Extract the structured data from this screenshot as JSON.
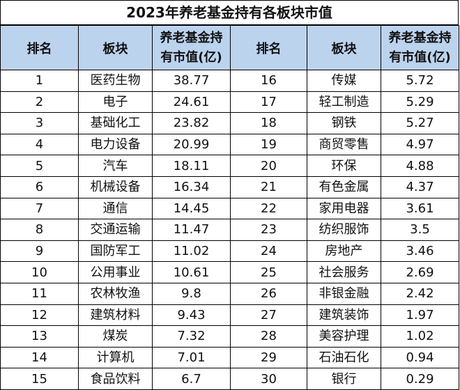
{
  "title": "2023年养老基金持有各板块市值",
  "headers": {
    "rank": "排名",
    "sector": "板块",
    "value_line1": "养老基金持",
    "value_line2": "有市值(亿)"
  },
  "left": [
    {
      "rank": "1",
      "sector": "医药生物",
      "value": "38.77"
    },
    {
      "rank": "2",
      "sector": "电子",
      "value": "24.61"
    },
    {
      "rank": "3",
      "sector": "基础化工",
      "value": "23.82"
    },
    {
      "rank": "4",
      "sector": "电力设备",
      "value": "20.99"
    },
    {
      "rank": "5",
      "sector": "汽车",
      "value": "18.11"
    },
    {
      "rank": "6",
      "sector": "机械设备",
      "value": "16.34"
    },
    {
      "rank": "7",
      "sector": "通信",
      "value": "14.45"
    },
    {
      "rank": "8",
      "sector": "交通运输",
      "value": "11.47"
    },
    {
      "rank": "9",
      "sector": "国防军工",
      "value": "11.02"
    },
    {
      "rank": "10",
      "sector": "公用事业",
      "value": "10.61"
    },
    {
      "rank": "11",
      "sector": "农林牧渔",
      "value": "9.8"
    },
    {
      "rank": "12",
      "sector": "建筑材料",
      "value": "9.43"
    },
    {
      "rank": "13",
      "sector": "煤炭",
      "value": "7.32"
    },
    {
      "rank": "14",
      "sector": "计算机",
      "value": "7.01"
    },
    {
      "rank": "15",
      "sector": "食品饮料",
      "value": "6.7"
    }
  ],
  "right": [
    {
      "rank": "16",
      "sector": "传媒",
      "value": "5.72"
    },
    {
      "rank": "17",
      "sector": "轻工制造",
      "value": "5.29"
    },
    {
      "rank": "18",
      "sector": "钢铁",
      "value": "5.27"
    },
    {
      "rank": "19",
      "sector": "商贸零售",
      "value": "4.97"
    },
    {
      "rank": "20",
      "sector": "环保",
      "value": "4.88"
    },
    {
      "rank": "21",
      "sector": "有色金属",
      "value": "4.37"
    },
    {
      "rank": "22",
      "sector": "家用电器",
      "value": "3.61"
    },
    {
      "rank": "23",
      "sector": "纺织服饰",
      "value": "3.5"
    },
    {
      "rank": "24",
      "sector": "房地产",
      "value": "3.46"
    },
    {
      "rank": "25",
      "sector": "社会服务",
      "value": "2.69"
    },
    {
      "rank": "26",
      "sector": "非银金融",
      "value": "2.42"
    },
    {
      "rank": "27",
      "sector": "建筑装饰",
      "value": "1.97"
    },
    {
      "rank": "28",
      "sector": "美容护理",
      "value": "1.02"
    },
    {
      "rank": "29",
      "sector": "石油石化",
      "value": "0.94"
    },
    {
      "rank": "30",
      "sector": "银行",
      "value": "0.29"
    }
  ]
}
